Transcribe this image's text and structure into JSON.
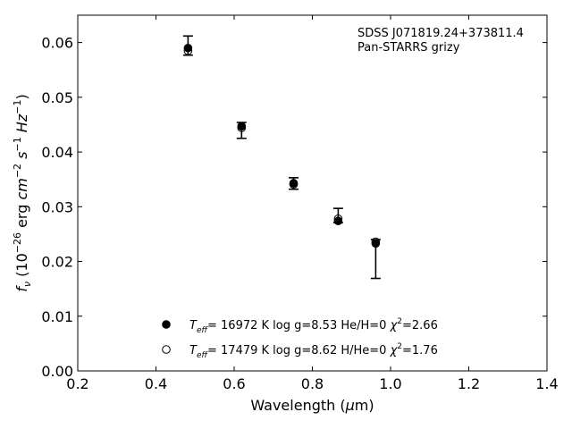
{
  "chart_data": {
    "type": "scatter",
    "title": "",
    "xlabel": "Wavelength (μm)",
    "ylabel": "fν (10⁻²⁶ erg cm⁻² s⁻¹ Hz⁻¹)",
    "xlim": [
      0.2,
      1.4
    ],
    "ylim": [
      0.0,
      0.065
    ],
    "x_ticks": [
      "0.2",
      "0.4",
      "0.6",
      "0.8",
      "1.0",
      "1.2",
      "1.4"
    ],
    "y_ticks": [
      "0.00",
      "0.01",
      "0.02",
      "0.03",
      "0.04",
      "0.05",
      "0.06"
    ],
    "grid": false,
    "legend_position": "lower-center",
    "annotation": [
      "SDSS J071819.24+373811.4",
      "Pan-STARRS grizy"
    ],
    "observed": {
      "x": [
        0.482,
        0.619,
        0.752,
        0.866,
        0.962
      ],
      "y_low": [
        0.0577,
        0.0425,
        0.0332,
        0.0271,
        0.0169
      ],
      "y_high": [
        0.0612,
        0.0454,
        0.0353,
        0.0297,
        0.024
      ]
    },
    "series": [
      {
        "name": "T_eff= 16972 K  log g=8.53  He/H=0  χ²=2.66",
        "marker": "filled",
        "x": [
          0.482,
          0.619,
          0.752,
          0.866,
          0.962
        ],
        "y": [
          0.059,
          0.0447,
          0.0343,
          0.0274,
          0.0233
        ]
      },
      {
        "name": "T_eff= 17479 K  log g=8.62  H/He=0  χ²=1.76",
        "marker": "open",
        "x": [
          0.482,
          0.619,
          0.752,
          0.866,
          0.962
        ],
        "y": [
          0.0585,
          0.0444,
          0.0341,
          0.0278,
          0.0236
        ]
      }
    ]
  }
}
